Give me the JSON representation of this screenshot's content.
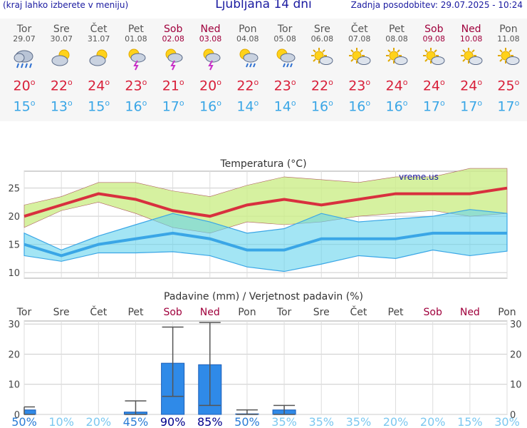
{
  "header": {
    "menu_hint": "(kraj lahko izberete v meniju)",
    "title": "Ljubljana 14 dni",
    "last_update": "Zadnja posodobitev: 29.07.2025 - 10:24"
  },
  "days": [
    {
      "name": "Tor",
      "date": "29.07",
      "weekend": false,
      "icon": "rain-cloud-icon",
      "tmax": "20",
      "tmin": "15"
    },
    {
      "name": "Sre",
      "date": "30.07",
      "weekend": false,
      "icon": "partly-cloudy-icon",
      "tmax": "22",
      "tmin": "13"
    },
    {
      "name": "Čet",
      "date": "31.07",
      "weekend": false,
      "icon": "partly-cloudy-icon",
      "tmax": "24",
      "tmin": "15"
    },
    {
      "name": "Pet",
      "date": "01.08",
      "weekend": false,
      "icon": "thunderstorm-icon",
      "tmax": "23",
      "tmin": "16"
    },
    {
      "name": "Sob",
      "date": "02.08",
      "weekend": true,
      "icon": "thunderstorm-icon",
      "tmax": "21",
      "tmin": "17"
    },
    {
      "name": "Ned",
      "date": "03.08",
      "weekend": true,
      "icon": "thunderstorm-icon",
      "tmax": "20",
      "tmin": "16"
    },
    {
      "name": "Pon",
      "date": "04.08",
      "weekend": false,
      "icon": "sun-rain-icon",
      "tmax": "22",
      "tmin": "14"
    },
    {
      "name": "Tor",
      "date": "05.08",
      "weekend": false,
      "icon": "sun-rain-icon",
      "tmax": "23",
      "tmin": "14"
    },
    {
      "name": "Sre",
      "date": "06.08",
      "weekend": false,
      "icon": "sun-cloud-icon",
      "tmax": "22",
      "tmin": "16"
    },
    {
      "name": "Čet",
      "date": "07.08",
      "weekend": false,
      "icon": "sun-cloud-icon",
      "tmax": "23",
      "tmin": "16"
    },
    {
      "name": "Pet",
      "date": "08.08",
      "weekend": false,
      "icon": "sun-cloud-icon",
      "tmax": "24",
      "tmin": "16"
    },
    {
      "name": "Sob",
      "date": "09.08",
      "weekend": true,
      "icon": "sun-cloud-icon",
      "tmax": "24",
      "tmin": "17"
    },
    {
      "name": "Ned",
      "date": "10.08",
      "weekend": true,
      "icon": "sun-cloud-icon",
      "tmax": "24",
      "tmin": "17"
    },
    {
      "name": "Pon",
      "date": "11.08",
      "weekend": false,
      "icon": "sun-cloud-icon",
      "tmax": "25",
      "tmin": "17"
    }
  ],
  "degree_symbol": "o",
  "chart_data": [
    {
      "type": "line",
      "title": "Temperatura (°C)",
      "watermark": "vreme.us",
      "ylim": [
        9,
        28
      ],
      "yticks": [
        10,
        15,
        20,
        25
      ],
      "grid": true,
      "series": [
        {
          "values": [
            20,
            22,
            24,
            23,
            21,
            20,
            22,
            23,
            22,
            23,
            24,
            24,
            24,
            25
          ]
        },
        {
          "values": [
            22,
            23.5,
            26,
            26,
            24.5,
            23.5,
            25.5,
            27,
            26.5,
            26,
            27,
            27,
            28.5,
            28.5
          ]
        },
        {
          "values": [
            18,
            21,
            22.5,
            20.5,
            18,
            17,
            19,
            18.5,
            19,
            20,
            20.5,
            21,
            20,
            20.5
          ]
        },
        {
          "values": [
            15,
            13,
            15,
            16,
            17,
            16,
            14,
            14,
            16,
            16,
            16,
            17,
            17,
            17
          ]
        },
        {
          "values": [
            17,
            14,
            16.5,
            18.5,
            20.5,
            19,
            17,
            17.8,
            20.5,
            19,
            19.5,
            20,
            21.2,
            20.5
          ]
        },
        {
          "values": [
            13,
            12,
            13.5,
            13.5,
            13.7,
            13,
            11,
            10.2,
            11.5,
            13,
            12.5,
            14,
            13,
            13.8
          ]
        }
      ]
    },
    {
      "type": "bar",
      "title": "Padavine (mm) / Verjetnost padavin (%)",
      "categories": [
        "Tor",
        "Sre",
        "Čet",
        "Pet",
        "Sob",
        "Ned",
        "Pon",
        "Tor",
        "Sre",
        "Čet",
        "Pet",
        "Sob",
        "Ned",
        "Pon"
      ],
      "weekend": [
        false,
        false,
        false,
        false,
        true,
        true,
        false,
        false,
        false,
        false,
        false,
        true,
        true,
        false
      ],
      "ylim": [
        0,
        31
      ],
      "yticks": [
        0,
        10,
        20,
        30
      ],
      "values": [
        1.5,
        0,
        0,
        0.8,
        17,
        16.5,
        0.2,
        1.5,
        0,
        0,
        0,
        0,
        0,
        0
      ],
      "range_low": [
        0,
        0,
        0,
        0,
        6,
        3,
        0,
        0,
        0,
        0,
        0,
        0,
        0,
        0
      ],
      "range_high": [
        2.5,
        0,
        0,
        4.5,
        29,
        30.5,
        1.5,
        3,
        0,
        0,
        0,
        0,
        0,
        0
      ],
      "probability": [
        "50%",
        "10%",
        "20%",
        "45%",
        "90%",
        "85%",
        "50%",
        "35%",
        "35%",
        "35%",
        "20%",
        "20%",
        "15%",
        "30%"
      ]
    }
  ]
}
